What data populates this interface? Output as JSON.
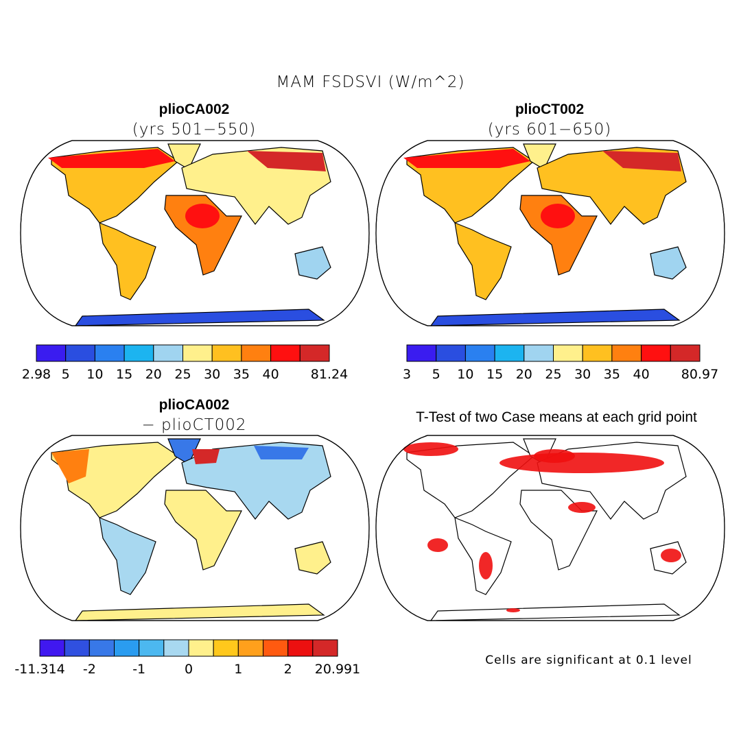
{
  "title": "MAM FSDSVI (W/m^2)",
  "panels": [
    {
      "title": "plioCA002",
      "subtitle": "(yrs 501−550)",
      "colorbar": {
        "colors": [
          "#3a1cf0",
          "#2a4ee0",
          "#2a80f0",
          "#1cb4f0",
          "#a0d4f0",
          "#fff08c",
          "#ffc020",
          "#ff8010",
          "#ff1010",
          "#d42828"
        ],
        "labels": [
          2.98,
          5,
          10,
          15,
          20,
          25,
          30,
          35,
          40,
          null,
          81.24
        ]
      }
    },
    {
      "title": "plioCT002",
      "subtitle": "(yrs 601−650)",
      "colorbar": {
        "colors": [
          "#3a1cf0",
          "#2a4ee0",
          "#2a80f0",
          "#1cb4f0",
          "#a0d4f0",
          "#fff08c",
          "#ffc020",
          "#ff8010",
          "#ff1010",
          "#d42828"
        ],
        "labels": [
          3,
          5,
          10,
          15,
          20,
          25,
          30,
          35,
          40,
          null,
          80.97
        ]
      }
    },
    {
      "title": "plioCA002",
      "subtitle": "− plioCT002",
      "colorbar": {
        "colors": [
          "#4018f0",
          "#3050e0",
          "#3878e8",
          "#2a9cf0",
          "#4cb8f0",
          "#a8d8f0",
          "#fff08c",
          "#ffc81c",
          "#ffa01c",
          "#ff5a10",
          "#ec1010",
          "#d42828"
        ],
        "labels": [
          -11.314,
          null,
          -2,
          null,
          -1,
          null,
          0,
          null,
          1,
          null,
          2,
          null,
          20.991
        ]
      }
    },
    {
      "title": "T-Test of two Case means at each grid point",
      "note": "Cells are significant at 0.1 level"
    }
  ]
}
